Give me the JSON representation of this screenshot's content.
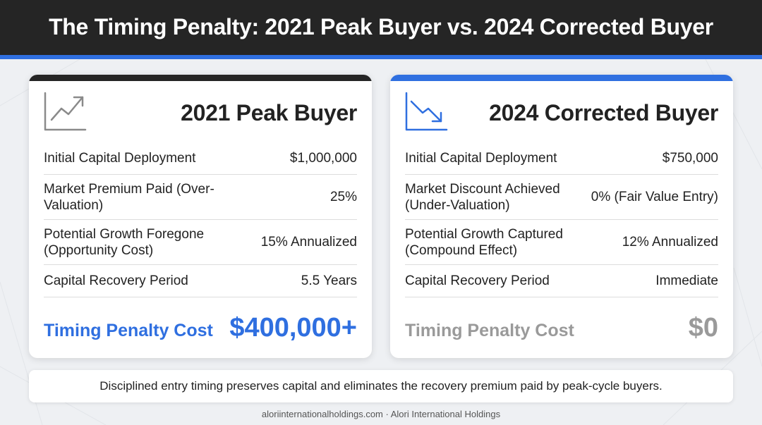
{
  "header": {
    "title": "The Timing Penalty: 2021 Peak Buyer vs. 2024 Corrected Buyer"
  },
  "colors": {
    "accent_blue": "#2f6fe0",
    "dark": "#252525",
    "muted_gray": "#9a9a9a"
  },
  "cards": {
    "left": {
      "icon": "trend-up-icon",
      "title": "2021 Peak Buyer",
      "rows": [
        {
          "label": "Initial Capital Deployment",
          "value": "$1,000,000"
        },
        {
          "label": "Market Premium Paid (Over-Valuation)",
          "value": "25%"
        },
        {
          "label": "Potential Growth Foregone (Opportunity Cost)",
          "value": "15% Annualized"
        },
        {
          "label": "Capital Recovery Period",
          "value": "5.5 Years"
        }
      ],
      "penalty_label": "Timing Penalty Cost",
      "penalty_value": "$400,000+"
    },
    "right": {
      "icon": "trend-down-icon",
      "title": "2024 Corrected Buyer",
      "rows": [
        {
          "label": "Initial Capital Deployment",
          "value": "$750,000"
        },
        {
          "label": "Market Discount Achieved (Under-Valuation)",
          "value": "0% (Fair Value Entry)"
        },
        {
          "label": "Potential Growth Captured (Compound Effect)",
          "value": "12% Annualized"
        },
        {
          "label": "Capital Recovery Period",
          "value": "Immediate"
        }
      ],
      "penalty_label": "Timing Penalty Cost",
      "penalty_value": "$0"
    }
  },
  "footer": {
    "note": "Disciplined entry timing preserves capital and eliminates the recovery premium paid by peak-cycle buyers.",
    "credit": "aloriinternationalholdings.com · Alori International Holdings"
  }
}
